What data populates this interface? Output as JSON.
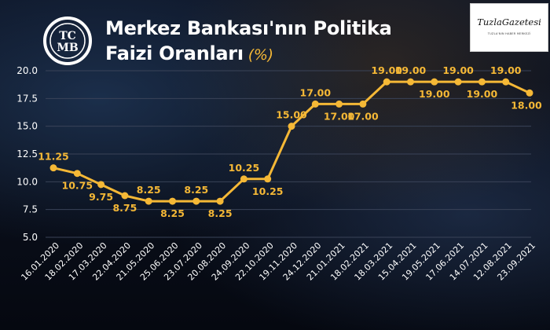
{
  "header": {
    "title_line1": "Merkez Bankası'nın Politika",
    "title_line2": "Faizi Oranları",
    "title_unit": "(%)",
    "logo_text": "TCMB"
  },
  "brand": {
    "name": "TuzlaGazetesi",
    "tagline": "TUZLA'NIN HABER MERKEZİ"
  },
  "colors": {
    "line": "#f5b836",
    "label": "#f5b836",
    "grid": "#3a4358",
    "text": "#ffffff"
  },
  "chart_data": {
    "type": "line",
    "title": "Merkez Bankası'nın Politika Faizi Oranları (%)",
    "xlabel": "",
    "ylabel": "",
    "ylim": [
      5.0,
      20.0
    ],
    "yticks": [
      "5.0",
      "7.5",
      "10.0",
      "12.5",
      "15.0",
      "17.5",
      "20.0"
    ],
    "grid": true,
    "categories": [
      "16.01.2020",
      "18.02.2020",
      "17.03.2020",
      "22.04.2020",
      "21.05.2020",
      "25.06.2020",
      "23.07.2020",
      "20.08.2020",
      "24.09.2020",
      "22.10.2020",
      "19.11.2020",
      "24.12.2020",
      "21.01.2021",
      "18.02.2021",
      "18.03.2021",
      "15.04.2021",
      "19.05.2021",
      "17.06.2021",
      "14.07.2021",
      "12.08.2021",
      "23.09.2021"
    ],
    "values": [
      11.25,
      10.75,
      9.75,
      8.75,
      8.25,
      8.25,
      8.25,
      8.25,
      10.25,
      10.25,
      15.0,
      17.0,
      17.0,
      17.0,
      19.0,
      19.0,
      19.0,
      19.0,
      19.0,
      19.0,
      18.0
    ],
    "data_labels": [
      "11.25",
      "10.75",
      "9.75",
      "8.75",
      "8.25",
      "8.25",
      "8.25",
      "8.25",
      "10.25",
      "10.25",
      "15.00",
      "17.00",
      "17.00",
      "17.00",
      "19.00",
      "19.00",
      "19.00",
      "19.00",
      "19.00",
      "19.00",
      "18.00"
    ]
  }
}
